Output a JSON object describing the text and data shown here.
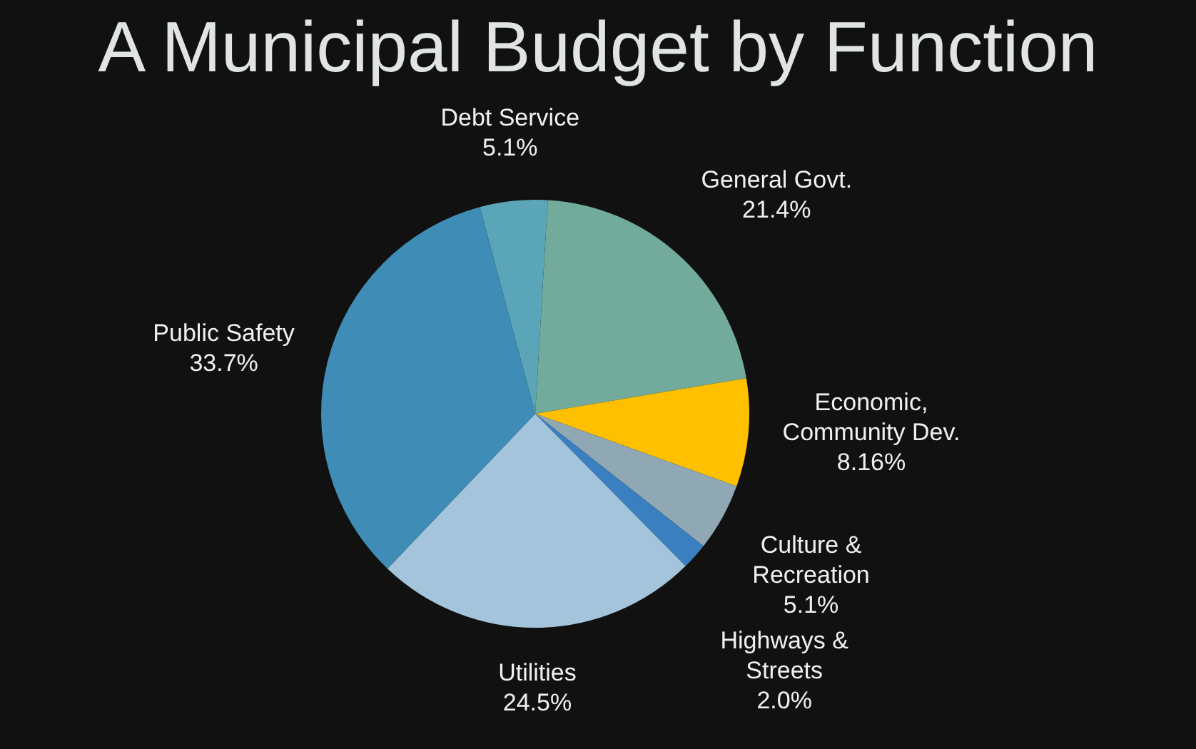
{
  "chart_data": {
    "type": "pie",
    "title": "A Municipal Budget by Function",
    "categories": [
      "Debt Service",
      "General Govt.",
      "Economic, Community Dev.",
      "Culture & Recreation",
      "Highways & Streets",
      "Utilities",
      "Public Safety"
    ],
    "values": [
      5.1,
      21.4,
      8.16,
      5.1,
      2.0,
      24.5,
      33.7
    ],
    "value_labels": [
      "5.1%",
      "21.4%",
      "8.16%",
      "5.1%",
      "2.0%",
      "24.5%",
      "33.7%"
    ],
    "colors": [
      "#5aa6b8",
      "#72aa9c",
      "#ffc000",
      "#8fa8b4",
      "#3a80c0",
      "#a4c4dc",
      "#3f8cb6"
    ],
    "legend": false
  }
}
